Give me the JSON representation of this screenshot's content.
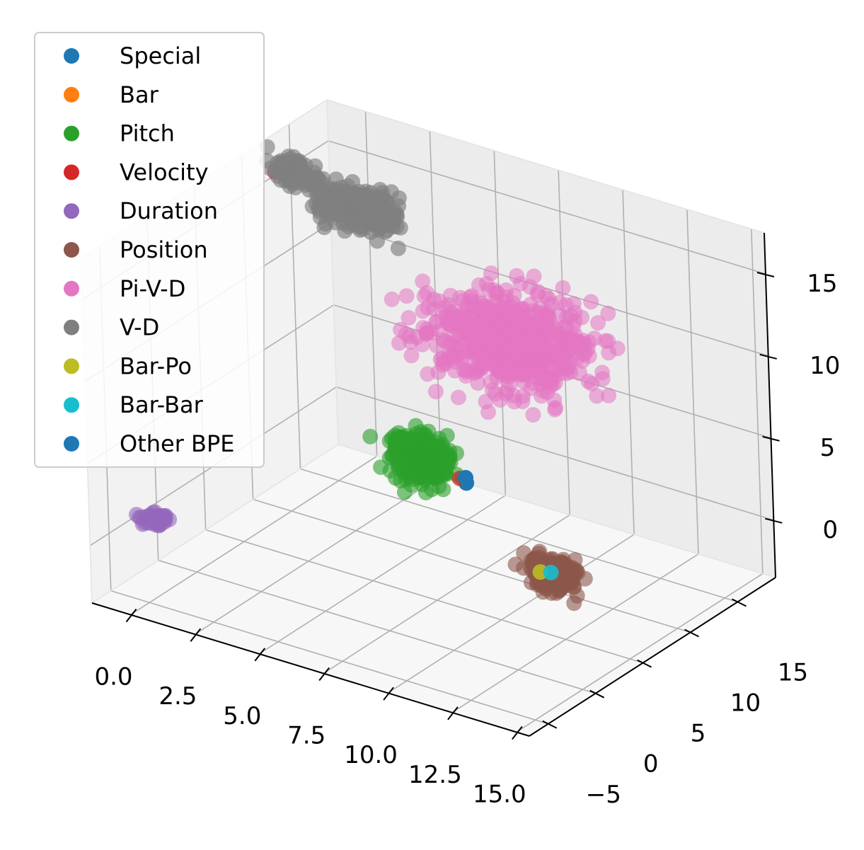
{
  "chart_data": {
    "type": "scatter",
    "projection": "3d",
    "title": "",
    "xlabel": "",
    "ylabel": "",
    "zlabel": "",
    "grid": true,
    "legend_placement": "upper-left",
    "xlim": [
      -1.5,
      15.5
    ],
    "ylim": [
      -7,
      19
    ],
    "zlim": [
      -3.5,
      17.5
    ],
    "x_ticks": [
      {
        "value": 0,
        "label": "0.0"
      },
      {
        "value": 2.5,
        "label": "2.5"
      },
      {
        "value": 5,
        "label": "5.0"
      },
      {
        "value": 7.5,
        "label": "7.5"
      },
      {
        "value": 10,
        "label": "10.0"
      },
      {
        "value": 12.5,
        "label": "12.5"
      },
      {
        "value": 15,
        "label": "15.0"
      }
    ],
    "y_ticks": [
      {
        "value": -5,
        "label": "−5"
      },
      {
        "value": 0,
        "label": "0"
      },
      {
        "value": 5,
        "label": "5"
      },
      {
        "value": 10,
        "label": "10"
      },
      {
        "value": 15,
        "label": "15"
      }
    ],
    "z_ticks": [
      {
        "value": 0,
        "label": "0"
      },
      {
        "value": 5,
        "label": "5"
      },
      {
        "value": 10,
        "label": "10"
      },
      {
        "value": 15,
        "label": "15"
      }
    ],
    "series": [
      {
        "name": "Special",
        "color": "#1f77b4",
        "clusters": [
          {
            "center": [
              6.9,
              10.0,
              1.5
            ],
            "spread": [
              0.05,
              0.05,
              0.05
            ],
            "count": 1,
            "alpha": 1.0
          }
        ]
      },
      {
        "name": "Bar",
        "color": "#ff7f0e",
        "clusters": [
          {
            "center": [
              12.6,
              2.8,
              1.5
            ],
            "spread": [
              0.05,
              0.05,
              0.05
            ],
            "count": 1,
            "alpha": 0.9
          }
        ]
      },
      {
        "name": "Pitch",
        "color": "#2ca02c",
        "clusters": [
          {
            "center": [
              5.1,
              10.2,
              2.0
            ],
            "spread": [
              0.5,
              0.5,
              0.6
            ],
            "count": 450,
            "alpha": 0.6
          }
        ]
      },
      {
        "name": "Velocity",
        "color": "#d62728",
        "clusters": [
          {
            "center": [
              -0.6,
              11.0,
              16.5
            ],
            "spread": [
              0.05,
              0.05,
              0.05
            ],
            "count": 1,
            "alpha": 0.7
          },
          {
            "center": [
              1.7,
              12.8,
              14.5
            ],
            "spread": [
              0.05,
              0.05,
              0.05
            ],
            "count": 1,
            "alpha": 0.7
          },
          {
            "center": [
              6.6,
              10.1,
              1.6
            ],
            "spread": [
              0.05,
              0.05,
              0.05
            ],
            "count": 1,
            "alpha": 0.7
          }
        ]
      },
      {
        "name": "Duration",
        "color": "#9467bd",
        "clusters": [
          {
            "center": [
              -0.4,
              -3.0,
              0.7
            ],
            "spread": [
              0.25,
              0.3,
              0.2
            ],
            "count": 40,
            "alpha": 0.6
          }
        ]
      },
      {
        "name": "Position",
        "color": "#8c564b",
        "clusters": [
          {
            "center": [
              12.9,
              2.9,
              1.5
            ],
            "spread": [
              0.4,
              0.4,
              0.4
            ],
            "count": 280,
            "alpha": 0.6
          }
        ]
      },
      {
        "name": "Pi-V-D",
        "color": "#e377c2",
        "clusters": [
          {
            "center": [
              7.5,
              13.5,
              9.0
            ],
            "spread": [
              1.4,
              1.8,
              1.2
            ],
            "count": 600,
            "alpha": 0.55
          }
        ]
      },
      {
        "name": "V-D",
        "color": "#7f7f7f",
        "clusters": [
          {
            "center": [
              0.2,
              11.0,
              16.8
            ],
            "spread": [
              0.4,
              0.3,
              0.4
            ],
            "count": 120,
            "alpha": 0.65
          },
          {
            "center": [
              2.0,
              12.5,
              15.0
            ],
            "spread": [
              0.8,
              0.8,
              0.5
            ],
            "count": 230,
            "alpha": 0.65
          }
        ]
      },
      {
        "name": "Bar-Po",
        "color": "#bcbd22",
        "clusters": [
          {
            "center": [
              12.5,
              2.6,
              1.5
            ],
            "spread": [
              0.05,
              0.05,
              0.05
            ],
            "count": 1,
            "alpha": 0.9
          }
        ]
      },
      {
        "name": "Bar-Bar",
        "color": "#17becf",
        "clusters": [
          {
            "center": [
              12.8,
              2.9,
              1.5
            ],
            "spread": [
              0.05,
              0.05,
              0.05
            ],
            "count": 1,
            "alpha": 0.9
          }
        ]
      },
      {
        "name": "Other BPE",
        "color": "#1f77b4",
        "clusters": [
          {
            "center": [
              6.8,
              10.2,
              1.7
            ],
            "spread": [
              0.05,
              0.05,
              0.05
            ],
            "count": 1,
            "alpha": 1.0
          }
        ]
      }
    ]
  }
}
